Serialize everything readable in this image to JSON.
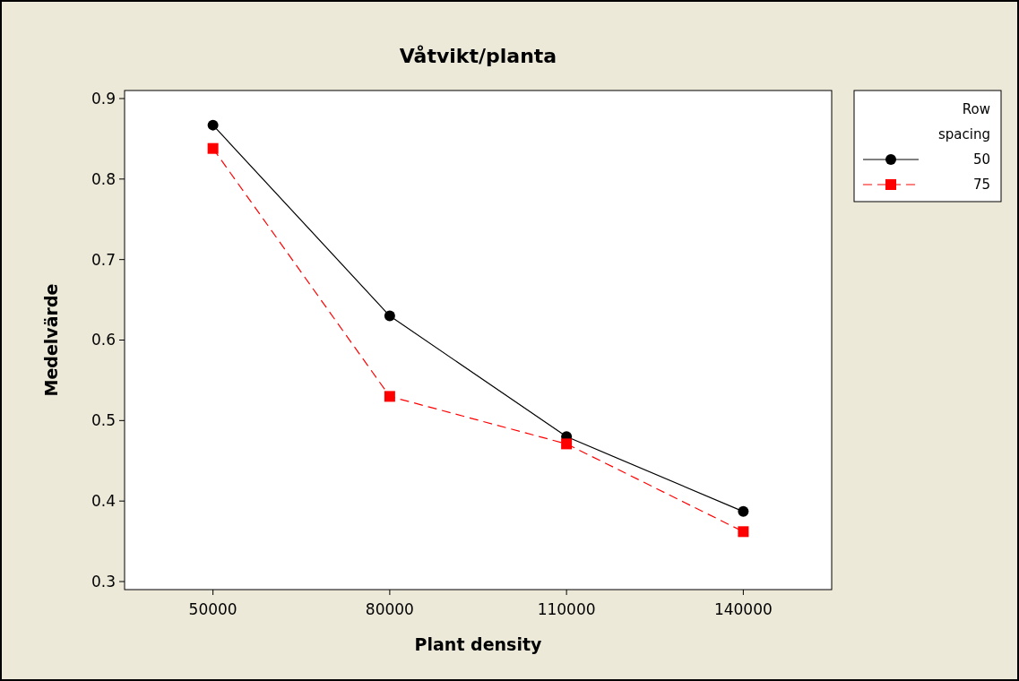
{
  "chart_data": {
    "type": "line",
    "title": "Våtvikt/planta",
    "xlabel": "Plant density",
    "ylabel": "Medelvärde",
    "legend_title": "Row spacing",
    "legend": "top right",
    "categories": [
      "50000",
      "80000",
      "110000",
      "140000"
    ],
    "ylim": [
      0.29,
      0.91
    ],
    "yticks": [
      0.3,
      0.4,
      0.5,
      0.6,
      0.7,
      0.8,
      0.9
    ],
    "grid": false,
    "series": [
      {
        "name": "50",
        "color": "#000000",
        "marker": "circle",
        "line_style": "solid",
        "values": [
          0.867,
          0.63,
          0.48,
          0.387
        ]
      },
      {
        "name": "75",
        "color": "#ff0000",
        "marker": "square",
        "line_style": "dashed",
        "values": [
          0.838,
          0.53,
          0.471,
          0.362
        ]
      }
    ]
  }
}
